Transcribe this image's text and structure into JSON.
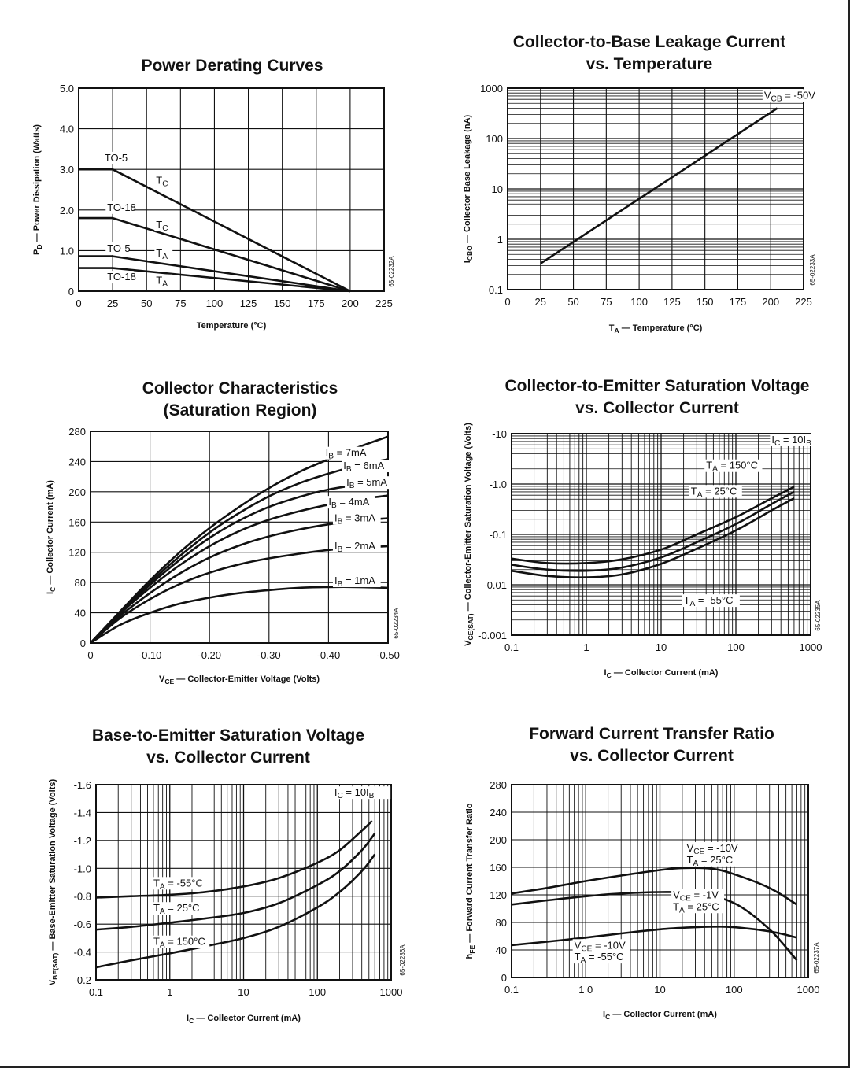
{
  "chart_data": [
    {
      "id": "c1",
      "type": "line",
      "title": [
        "Power Derating Curves"
      ],
      "xlabel": "Temperature (°C)",
      "ylabel": "P_D — Power Dissipation (Watts)",
      "xlim": [
        0,
        225
      ],
      "ylim": [
        0,
        5
      ],
      "xticks": [
        0,
        25,
        50,
        75,
        100,
        125,
        150,
        175,
        200,
        225
      ],
      "yticks": [
        0,
        1,
        2,
        3,
        4,
        5
      ],
      "xtick_labels": [
        "0",
        "25",
        "50",
        "75",
        "100",
        "125",
        "150",
        "175",
        "200",
        "225"
      ],
      "ytick_labels": [
        "0",
        "1.0",
        "2.0",
        "3.0",
        "4.0",
        "5.0"
      ],
      "code": "65-02232A",
      "grid": true,
      "series": [
        {
          "name": "TO-5 T_C",
          "x": [
            0,
            25,
            200
          ],
          "y": [
            3.0,
            3.0,
            0
          ]
        },
        {
          "name": "TO-18 T_C",
          "x": [
            0,
            25,
            200
          ],
          "y": [
            1.8,
            1.8,
            0
          ]
        },
        {
          "name": "TO-5 T_A",
          "x": [
            0,
            25,
            200
          ],
          "y": [
            0.86,
            0.86,
            0
          ]
        },
        {
          "name": "TO-18 T_A",
          "x": [
            0,
            25,
            200
          ],
          "y": [
            0.57,
            0.57,
            0
          ]
        }
      ],
      "annotations": [
        {
          "text": "TO-5",
          "x": 19,
          "y": 3.2
        },
        {
          "text": "T_C",
          "x": 57,
          "y": 2.65
        },
        {
          "text": "TO-18",
          "x": 21,
          "y": 1.98
        },
        {
          "text": "T_C",
          "x": 57,
          "y": 1.55
        },
        {
          "text": "TO-5",
          "x": 21,
          "y": 0.97
        },
        {
          "text": "T_A",
          "x": 57,
          "y": 0.85
        },
        {
          "text": "TO-18",
          "x": 21,
          "y": 0.27
        },
        {
          "text": "T_A",
          "x": 57,
          "y": 0.18
        }
      ]
    },
    {
      "id": "c2",
      "type": "line",
      "title": [
        "Collector-to-Base Leakage Current",
        "vs. Temperature"
      ],
      "xlabel": "T_A — Temperature (°C)",
      "ylabel": "I_CBO — Collector Base Leakage (nA)",
      "xlim": [
        0,
        225
      ],
      "ylim": [
        0.1,
        1000
      ],
      "yscale": "log",
      "xticks": [
        0,
        25,
        50,
        75,
        100,
        125,
        150,
        175,
        200,
        225
      ],
      "yticks": [
        0.1,
        1,
        10,
        100,
        1000
      ],
      "xtick_labels": [
        "0",
        "25",
        "50",
        "75",
        "100",
        "125",
        "150",
        "175",
        "200",
        "225"
      ],
      "ytick_labels": [
        "0.1",
        "1",
        "10",
        "100",
        "1000"
      ],
      "code": "65-02233A",
      "grid": true,
      "series": [
        {
          "name": "V_CB = -50V",
          "x": [
            25,
            205
          ],
          "y": [
            0.33,
            400
          ]
        }
      ],
      "annotations": [
        {
          "text": "V_CB = -50V",
          "x": 195,
          "y": 620
        }
      ]
    },
    {
      "id": "c3",
      "type": "line",
      "title": [
        "Collector Characteristics",
        "(Saturation Region)"
      ],
      "xlabel": "V_CE — Collector-Emitter Voltage (Volts)",
      "ylabel": "I_C — Collector Current (mA)",
      "xlim": [
        0,
        -0.5
      ],
      "ylim": [
        0,
        280
      ],
      "xticks": [
        0,
        -0.1,
        -0.2,
        -0.3,
        -0.4,
        -0.5
      ],
      "yticks": [
        0,
        40,
        80,
        120,
        160,
        200,
        240,
        280
      ],
      "xtick_labels": [
        "0",
        "-0.10",
        "-0.20",
        "-0.30",
        "-0.40",
        "-0.50"
      ],
      "ytick_labels": [
        "0",
        "40",
        "80",
        "120",
        "160",
        "200",
        "240",
        "280"
      ],
      "code": "65-02234A",
      "grid": true,
      "series": [
        {
          "name": "I_B = 7mA",
          "x": [
            0,
            -0.05,
            -0.1,
            -0.15,
            -0.2,
            -0.25,
            -0.3,
            -0.35,
            -0.4,
            -0.45,
            -0.5
          ],
          "y": [
            0,
            42,
            83,
            120,
            152,
            180,
            205,
            226,
            243,
            259,
            273
          ]
        },
        {
          "name": "I_B = 6mA",
          "x": [
            0,
            -0.05,
            -0.1,
            -0.15,
            -0.2,
            -0.25,
            -0.3,
            -0.35,
            -0.4,
            -0.45,
            -0.5
          ],
          "y": [
            0,
            41,
            80,
            115,
            146,
            172,
            194,
            211,
            224,
            235,
            243
          ]
        },
        {
          "name": "I_B = 5mA",
          "x": [
            0,
            -0.05,
            -0.1,
            -0.15,
            -0.2,
            -0.25,
            -0.3,
            -0.35,
            -0.4,
            -0.45,
            -0.5
          ],
          "y": [
            0,
            40,
            77,
            110,
            139,
            162,
            180,
            193,
            203,
            209,
            213
          ]
        },
        {
          "name": "I_B = 4mA",
          "x": [
            0,
            -0.05,
            -0.1,
            -0.15,
            -0.2,
            -0.25,
            -0.3,
            -0.35,
            -0.4,
            -0.45,
            -0.5
          ],
          "y": [
            0,
            39,
            73,
            103,
            128,
            148,
            163,
            174,
            183,
            190,
            195
          ]
        },
        {
          "name": "I_B = 3mA",
          "x": [
            0,
            -0.05,
            -0.1,
            -0.15,
            -0.2,
            -0.25,
            -0.3,
            -0.35,
            -0.4,
            -0.45,
            -0.5
          ],
          "y": [
            0,
            36,
            66,
            92,
            113,
            129,
            141,
            150,
            157,
            162,
            165
          ]
        },
        {
          "name": "I_B = 2mA",
          "x": [
            0,
            -0.05,
            -0.1,
            -0.15,
            -0.2,
            -0.25,
            -0.3,
            -0.35,
            -0.4,
            -0.45,
            -0.5
          ],
          "y": [
            0,
            33,
            58,
            78,
            93,
            104,
            112,
            118,
            123,
            126,
            128
          ]
        },
        {
          "name": "I_B = 1mA",
          "x": [
            0,
            -0.05,
            -0.1,
            -0.15,
            -0.2,
            -0.25,
            -0.3,
            -0.35,
            -0.4,
            -0.45,
            -0.5
          ],
          "y": [
            0,
            24,
            40,
            52,
            60,
            66,
            70,
            73,
            74,
            74,
            73
          ]
        }
      ],
      "annotations": [
        {
          "text": "I_B = 7mA",
          "x": -0.395,
          "y": 247
        },
        {
          "text": "I_B = 6mA",
          "x": -0.425,
          "y": 230
        },
        {
          "text": "I_B = 5mA",
          "x": -0.43,
          "y": 208
        },
        {
          "text": "I_B = 4mA",
          "x": -0.4,
          "y": 182
        },
        {
          "text": "I_B = 3mA",
          "x": -0.41,
          "y": 161
        },
        {
          "text": "I_B = 2mA",
          "x": -0.41,
          "y": 124
        },
        {
          "text": "I_B = 1mA",
          "x": -0.41,
          "y": 78
        }
      ]
    },
    {
      "id": "c4",
      "type": "line",
      "title": [
        "Collector-to-Emitter Saturation Voltage",
        "vs. Collector Current"
      ],
      "xlabel": "I_C — Collector Current (mA)",
      "ylabel": "V_CE(SAT) — Collector-Emitter Saturation Voltage (Volts)",
      "xlim": [
        0.1,
        1000
      ],
      "xscale": "log",
      "ylim": [
        -0.001,
        -10
      ],
      "yscale": "log",
      "xticks": [
        0.1,
        1,
        10,
        100,
        1000
      ],
      "yticks": [
        -0.001,
        -0.01,
        -0.1,
        -1.0,
        -10
      ],
      "xtick_labels": [
        "0.1",
        "1",
        "10",
        "100",
        "1000"
      ],
      "ytick_labels": [
        "-0.001",
        "-0.01",
        "-0.1",
        "-1.0",
        "-10"
      ],
      "code": "65-02235A",
      "grid": true,
      "series": [
        {
          "name": "T_A = 150°C",
          "x": [
            0.1,
            0.3,
            1,
            3,
            10,
            30,
            100,
            300,
            600
          ],
          "y": [
            -0.033,
            -0.027,
            -0.027,
            -0.032,
            -0.05,
            -0.1,
            -0.22,
            -0.52,
            -0.88
          ]
        },
        {
          "name": "T_A = 25°C",
          "x": [
            0.1,
            0.3,
            1,
            3,
            10,
            30,
            100,
            300,
            600
          ],
          "y": [
            -0.025,
            -0.02,
            -0.019,
            -0.022,
            -0.035,
            -0.07,
            -0.16,
            -0.4,
            -0.7
          ]
        },
        {
          "name": "T_A = -55°C",
          "x": [
            0.1,
            0.3,
            1,
            3,
            10,
            30,
            100,
            300,
            600
          ],
          "y": [
            -0.019,
            -0.015,
            -0.014,
            -0.016,
            -0.026,
            -0.052,
            -0.12,
            -0.3,
            -0.52
          ]
        }
      ],
      "annotations": [
        {
          "text": "I_C = 10I_B",
          "x": 300,
          "y": -6.5
        },
        {
          "text": "T_A = 150°C",
          "x": 40,
          "y": -2.0
        },
        {
          "text": "T_A = 25°C",
          "x": 25,
          "y": -0.62
        },
        {
          "text": "T_A = -55°C",
          "x": 20,
          "y": -0.0042
        }
      ]
    },
    {
      "id": "c5",
      "type": "line",
      "title": [
        "Base-to-Emitter Saturation Voltage",
        "vs. Collector Current"
      ],
      "xlabel": "I_C — Collector Current (mA)",
      "ylabel": "V_BE(SAT) — Base-Emitter Saturation Voltage (Volts)",
      "xlim": [
        0.1,
        1000
      ],
      "xscale": "log",
      "ylim": [
        -0.2,
        -1.6
      ],
      "xticks": [
        0.1,
        1,
        10,
        100,
        1000
      ],
      "yticks": [
        -0.2,
        -0.4,
        -0.6,
        -0.8,
        -1.0,
        -1.2,
        -1.4,
        -1.6
      ],
      "xtick_labels": [
        "0.1",
        "1",
        "10",
        "100",
        "1000"
      ],
      "ytick_labels": [
        "-0.2",
        "-0.4",
        "-0.6",
        "-0.8",
        "-1.0",
        "-1.2",
        "-1.4",
        "-1.6"
      ],
      "code": "65-02236A",
      "grid": true,
      "series": [
        {
          "name": "T_A = -55°C",
          "x": [
            0.1,
            0.3,
            1,
            3,
            10,
            30,
            100,
            200,
            400,
            550
          ],
          "y": [
            -0.79,
            -0.8,
            -0.81,
            -0.83,
            -0.87,
            -0.93,
            -1.04,
            -1.13,
            -1.27,
            -1.34
          ]
        },
        {
          "name": "T_A = 25°C",
          "x": [
            0.1,
            0.3,
            1,
            3,
            10,
            30,
            100,
            200,
            400,
            600
          ],
          "y": [
            -0.56,
            -0.58,
            -0.61,
            -0.64,
            -0.68,
            -0.75,
            -0.88,
            -0.98,
            -1.13,
            -1.25
          ]
        },
        {
          "name": "T_A = 150°C",
          "x": [
            0.1,
            0.3,
            1,
            3,
            10,
            30,
            100,
            200,
            400,
            600
          ],
          "y": [
            -0.29,
            -0.34,
            -0.39,
            -0.44,
            -0.5,
            -0.58,
            -0.72,
            -0.83,
            -0.98,
            -1.1
          ]
        }
      ],
      "annotations": [
        {
          "text": "I_C = 10I_B",
          "x": 170,
          "y": -1.52
        },
        {
          "text": "T_A = -55°C",
          "x": 0.6,
          "y": -0.87
        },
        {
          "text": "T_A = 25°C",
          "x": 0.6,
          "y": -0.69
        },
        {
          "text": "T_A = 150°C",
          "x": 0.6,
          "y": -0.45
        }
      ]
    },
    {
      "id": "c6",
      "type": "line",
      "title": [
        "Forward Current Transfer Ratio",
        "vs. Collector Current"
      ],
      "xlabel": "I_C — Collector Current (mA)",
      "ylabel": "h_FE — Forward Current Transfer Ratio",
      "xlim": [
        0.1,
        1000
      ],
      "xscale": "log",
      "ylim": [
        0,
        280
      ],
      "xticks": [
        0.1,
        1,
        10,
        100,
        1000
      ],
      "yticks": [
        0,
        40,
        80,
        120,
        160,
        200,
        240,
        280
      ],
      "xtick_labels": [
        "0.1",
        "1 0",
        "10",
        "100",
        "1000"
      ],
      "ytick_labels": [
        "0",
        "40",
        "80",
        "120",
        "160",
        "200",
        "240",
        "280"
      ],
      "code": "65-02237A",
      "grid": true,
      "series": [
        {
          "name": "V_CE = -10V, T_A = 25°C",
          "x": [
            0.1,
            0.3,
            1,
            3,
            10,
            20,
            50,
            100,
            300,
            700
          ],
          "y": [
            122,
            130,
            140,
            148,
            156,
            159,
            158,
            150,
            130,
            106
          ]
        },
        {
          "name": "V_CE = -1V, T_A = 25°C",
          "x": [
            0.1,
            0.3,
            1,
            3,
            10,
            30,
            100,
            300,
            700
          ],
          "y": [
            106,
            112,
            118,
            122,
            124,
            122,
            108,
            70,
            25
          ]
        },
        {
          "name": "V_CE = -10V, T_A = -55°C",
          "x": [
            0.1,
            0.3,
            1,
            3,
            10,
            30,
            60,
            100,
            300,
            700
          ],
          "y": [
            47,
            52,
            58,
            64,
            70,
            73,
            74,
            73,
            67,
            58
          ]
        }
      ],
      "annotations": [
        {
          "text": "V_CE = -10V",
          "x": 23,
          "y": 183
        },
        {
          "text": "T_A = 25°C",
          "x": 23,
          "y": 166
        },
        {
          "text": "V_CE = -1V",
          "x": 15,
          "y": 115
        },
        {
          "text": "T_A = 25°C",
          "x": 15,
          "y": 98
        },
        {
          "text": "V_CE = -10V",
          "x": 0.7,
          "y": 42
        },
        {
          "text": "T_A = -55°C",
          "x": 0.7,
          "y": 25
        }
      ]
    }
  ]
}
